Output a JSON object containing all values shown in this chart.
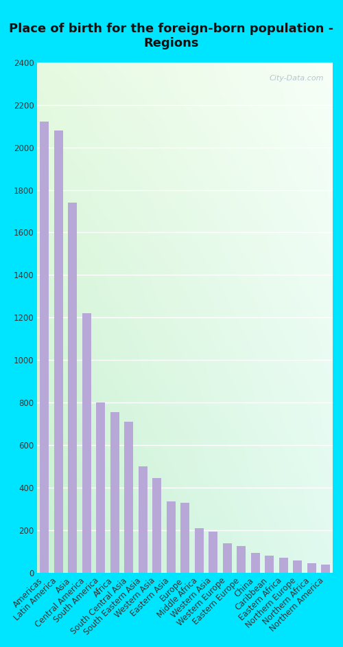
{
  "title": "Place of birth for the foreign-born population -\nRegions",
  "categories": [
    "Americas",
    "Latin America",
    "Asia",
    "Central America",
    "South America",
    "Africa",
    "South Central Asia",
    "South Eastern Asia",
    "Western Asia",
    "Eastern Asia",
    "Europe",
    "Middle Africa",
    "Western Asia",
    "Western Europe",
    "Eastern Europe",
    "China",
    "Caribbean",
    "Eastern Africa",
    "Northern Europe",
    "Northern Africa",
    "Northern America"
  ],
  "values": [
    2120,
    2080,
    1740,
    1220,
    800,
    755,
    710,
    500,
    445,
    335,
    330,
    210,
    195,
    140,
    125,
    95,
    80,
    70,
    60,
    45,
    40
  ],
  "bar_color": "#b8a8d8",
  "ylim": [
    0,
    2400
  ],
  "yticks": [
    0,
    200,
    400,
    600,
    800,
    1000,
    1200,
    1400,
    1600,
    1800,
    2000,
    2200,
    2400
  ],
  "figure_bg": "#00e5ff",
  "title_fontsize": 13,
  "tick_fontsize": 8.5,
  "watermark": "City-Data.com"
}
